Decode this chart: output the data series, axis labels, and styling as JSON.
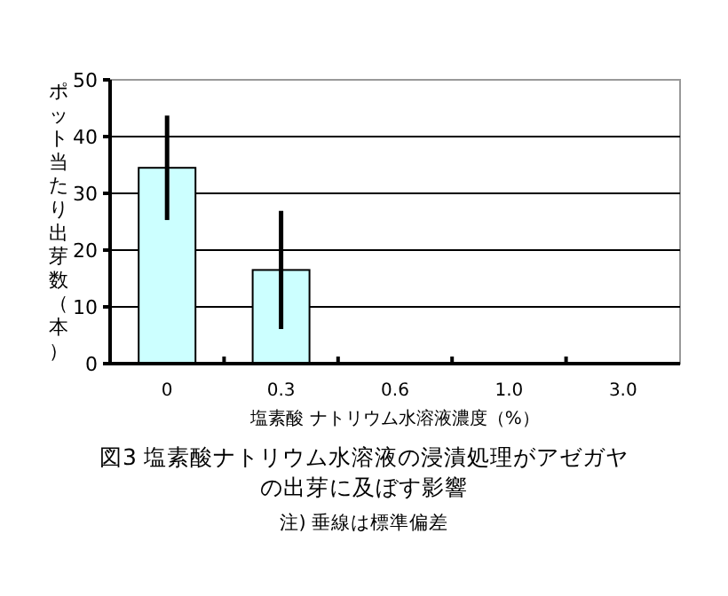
{
  "chart_data": {
    "type": "bar",
    "title": "図3  塩素酸ナトリウム水溶液の浸漬処理がアゼガヤの出芽に及ぼす影響",
    "xlabel": "塩素酸 ナトリウム水溶液濃度（%）",
    "ylabel": "ポット当たり出芽数（本）",
    "annotations": [
      "注) 垂線は標準偏差"
    ],
    "categories": [
      "0",
      "0.3",
      "0.6",
      "1.0",
      "3.0"
    ],
    "values": [
      34.5,
      16.5,
      0,
      0,
      0
    ],
    "errors": [
      9.2,
      10.4,
      null,
      null,
      null
    ],
    "color": "#ccffff",
    "ylim": [
      0,
      50
    ],
    "yticks": [
      0,
      10,
      20,
      30,
      40,
      50
    ],
    "grid": "y"
  }
}
